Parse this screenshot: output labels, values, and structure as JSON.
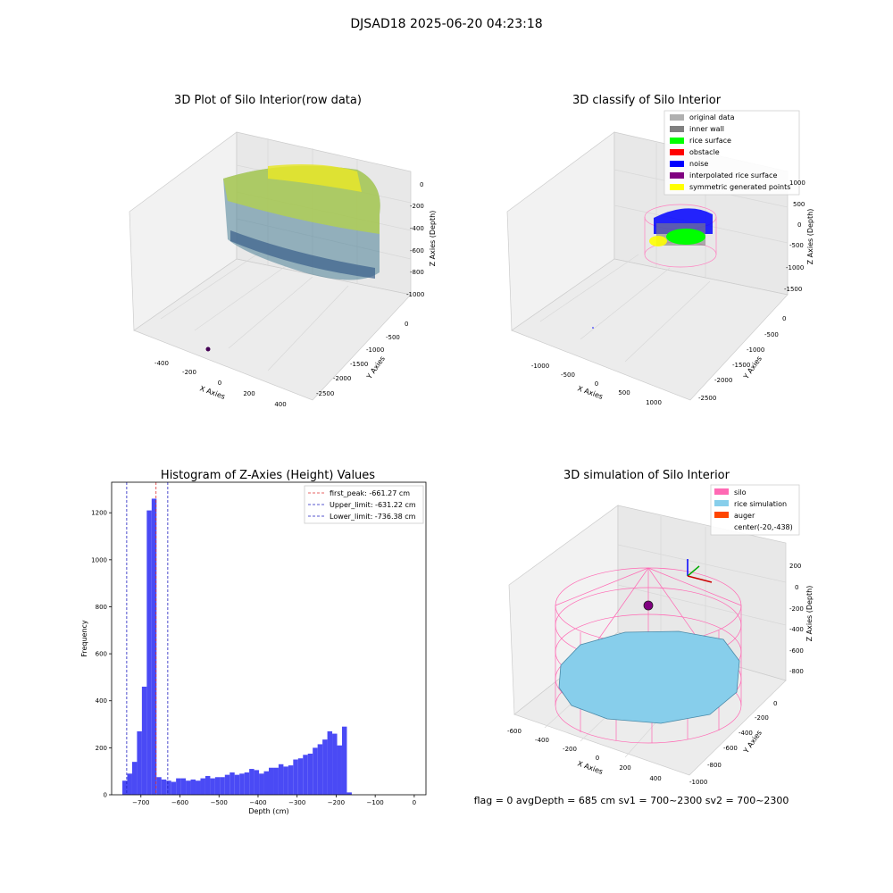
{
  "figure": {
    "suptitle": "DJSAD18 2025-06-20 04:23:18",
    "status_text": "flag = 0    avgDepth = 685 cm  sv1 = 700~2300  sv2 = 700~2300"
  },
  "colors": {
    "hist_bar": "#4a4af5",
    "first_peak": "#e03030",
    "limit": "#2020c0",
    "silo_wire": "#ff69b4",
    "rice_sim": "#87ceeb",
    "auger": "#ff4500",
    "pane": "#f2f2f2",
    "grid": "#dcdcdc"
  },
  "chart_data": [
    {
      "type": "scatter",
      "subtype": "3d-scatter",
      "title": "3D Plot of Silo Interior(row data)",
      "xlabel": "X Axies",
      "ylabel": "Y Axies",
      "zlabel": "Z Axies (Depth)",
      "x_ticks": [
        "-400",
        "-200",
        "0",
        "200",
        "400"
      ],
      "y_ticks": [
        "0",
        "-500",
        "-1000",
        "-1500",
        "-2000",
        "-2500"
      ],
      "z_ticks": [
        "0",
        "-200",
        "-400",
        "-600",
        "-800",
        "-1000"
      ],
      "colormap": "viridis",
      "grid": true
    },
    {
      "type": "scatter",
      "subtype": "3d-classification",
      "title": "3D classify of Silo Interior",
      "xlabel": "X Axies",
      "ylabel": "Y Axies",
      "zlabel": "Z Axies (Depth)",
      "x_ticks": [
        "-1000",
        "-500",
        "0",
        "500",
        "1000"
      ],
      "y_ticks": [
        "0",
        "-500",
        "-1000",
        "-1500",
        "-2000",
        "-2500"
      ],
      "z_ticks": [
        "1000",
        "500",
        "0",
        "-500",
        "-1000",
        "-1500"
      ],
      "legend_position": "top-right",
      "legend": [
        {
          "label": "original data",
          "color": "#b0b0b0"
        },
        {
          "label": "inner wall",
          "color": "#808080"
        },
        {
          "label": "rice surface",
          "color": "#00ff00"
        },
        {
          "label": "obstacle",
          "color": "#ff0000"
        },
        {
          "label": "noise",
          "color": "#0000ff"
        },
        {
          "label": "interpolated rice surface",
          "color": "#800080"
        },
        {
          "label": "symmetric generated points",
          "color": "#ffff00"
        }
      ],
      "grid": true
    },
    {
      "type": "bar",
      "subtype": "histogram",
      "title": "Histogram of Z-Axies (Height) Values",
      "xlabel": "Depth (cm)",
      "ylabel": "Frequency",
      "xlim": [
        -775,
        30
      ],
      "ylim": [
        0,
        1330
      ],
      "x_ticks": [
        -700,
        -600,
        -500,
        -400,
        -300,
        -200,
        -100,
        0
      ],
      "x_tick_labels": [
        "−700",
        "−600",
        "−500",
        "−400",
        "−300",
        "−200",
        "−100",
        "0"
      ],
      "y_ticks": [
        0,
        200,
        400,
        600,
        800,
        1000,
        1200
      ],
      "y_tick_labels": [
        "0",
        "200",
        "400",
        "600",
        "800",
        "1000",
        "1200"
      ],
      "bin_start": -747.5,
      "bin_width": 12.5,
      "counts": [
        60,
        90,
        140,
        270,
        460,
        1210,
        1260,
        75,
        65,
        60,
        55,
        70,
        70,
        60,
        65,
        60,
        70,
        80,
        70,
        75,
        75,
        85,
        95,
        85,
        90,
        95,
        110,
        105,
        90,
        100,
        115,
        115,
        130,
        120,
        125,
        150,
        155,
        170,
        175,
        200,
        215,
        235,
        270,
        260,
        210,
        290,
        10
      ],
      "lines": [
        {
          "label": "first_peak: -661.27 cm",
          "x": -661.27,
          "color": "#e03030"
        },
        {
          "label": "Upper_limit: -631.22 cm",
          "x": -631.22,
          "color": "#2020c0"
        },
        {
          "label": "Lower_limit: -736.38 cm",
          "x": -736.38,
          "color": "#2020c0"
        }
      ],
      "legend_position": "top-right"
    },
    {
      "type": "area",
      "subtype": "3d-simulation",
      "title": "3D simulation of Silo Interior",
      "xlabel": "X Axies",
      "ylabel": "Y Axies",
      "zlabel": "Z Axies (Depth)",
      "x_ticks": [
        "-600",
        "-400",
        "-200",
        "0",
        "200",
        "400"
      ],
      "y_ticks": [
        "0",
        "-200",
        "-400",
        "-600",
        "-800",
        "-1000"
      ],
      "z_ticks": [
        "200",
        "0",
        "-200",
        "-400",
        "-600",
        "-800"
      ],
      "legend_position": "top-right",
      "legend": [
        {
          "label": "silo",
          "color": "#ff69b4"
        },
        {
          "label": "rice simulation",
          "color": "#87ceeb"
        },
        {
          "label": "auger",
          "color": "#ff4500"
        },
        {
          "label": "center(-20,-438)",
          "color": ""
        }
      ],
      "grid": true
    }
  ]
}
